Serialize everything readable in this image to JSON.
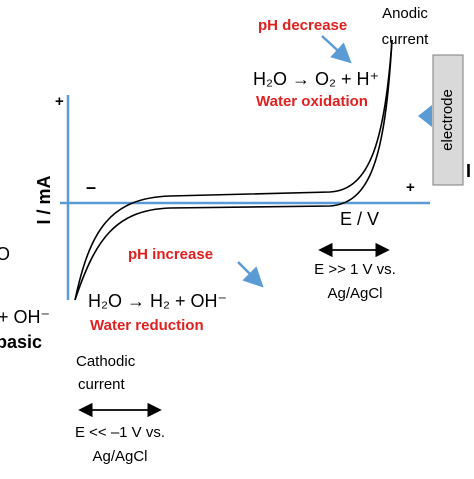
{
  "top": {
    "ph_label": "pH decrease",
    "current_lines": [
      "Anodic",
      "current"
    ],
    "reaction": "H₂O → O₂ + H⁺",
    "process": "Water oxidation"
  },
  "electrode": {
    "label": "electrode",
    "cut_text": "I"
  },
  "axes": {
    "y_plus": "+",
    "y_label": "I / mA",
    "x_minus": "–",
    "x_plus": "+",
    "x_label": "E / V"
  },
  "bottom": {
    "ph_label": "pH increase",
    "reaction": "H₂O → H₂ + OH⁻",
    "process": "Water reduction",
    "current_lines": [
      "Cathodic",
      "current"
    ]
  },
  "ranges": {
    "anodic_lines": [
      "E >> 1 V vs.",
      "Ag/AgCl"
    ],
    "cathodic_lines": [
      "E << –1 V vs.",
      "Ag/AgCl"
    ]
  },
  "left_cut": {
    "lines": [
      "O",
      "+ OH⁻",
      "basic"
    ]
  }
}
